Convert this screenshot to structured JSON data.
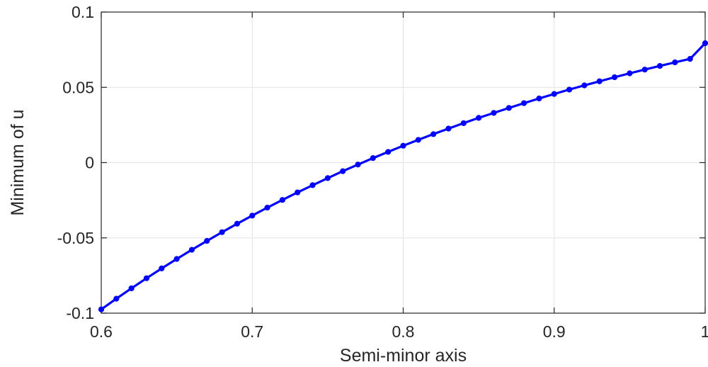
{
  "chart_data": {
    "type": "line",
    "title": "",
    "xlabel": "Semi-minor axis",
    "ylabel": "Minimum of u",
    "xlim": [
      0.6,
      1
    ],
    "ylim": [
      -0.1,
      0.1
    ],
    "x_ticks": [
      0.6,
      0.7,
      0.8,
      0.9,
      1
    ],
    "x_tick_labels": [
      "0.6",
      "0.7",
      "0.8",
      "0.9",
      "1"
    ],
    "y_ticks": [
      -0.1,
      -0.05,
      0,
      0.05,
      0.1
    ],
    "y_tick_labels": [
      "-0.1",
      "-0.05",
      "0",
      "0.05",
      "0.1"
    ],
    "grid": true,
    "legend": "none",
    "series": [
      {
        "color": "#0000ff",
        "marker": "filled-circle",
        "x": [
          0.6,
          0.61,
          0.62,
          0.63,
          0.64,
          0.65,
          0.66,
          0.67,
          0.68,
          0.69,
          0.7,
          0.71,
          0.72,
          0.73,
          0.74,
          0.75,
          0.76,
          0.77,
          0.78,
          0.79,
          0.8,
          0.81,
          0.82,
          0.83,
          0.84,
          0.85,
          0.86,
          0.87,
          0.88,
          0.89,
          0.9,
          0.91,
          0.92,
          0.93,
          0.94,
          0.95,
          0.96,
          0.97,
          0.98,
          0.99,
          1.0
        ],
        "y": [
          -0.0975,
          -0.0904,
          -0.0835,
          -0.0768,
          -0.0703,
          -0.064,
          -0.0579,
          -0.052,
          -0.0462,
          -0.0406,
          -0.0352,
          -0.0299,
          -0.0248,
          -0.0198,
          -0.015,
          -0.0103,
          -0.0057,
          -0.0013,
          0.003,
          0.0071,
          0.0112,
          0.0151,
          0.0189,
          0.0226,
          0.0262,
          0.0297,
          0.033,
          0.0363,
          0.0395,
          0.0426,
          0.0456,
          0.0485,
          0.0513,
          0.054,
          0.0567,
          0.0593,
          0.0618,
          0.0642,
          0.0666,
          0.0689,
          0.0793
        ]
      }
    ]
  }
}
